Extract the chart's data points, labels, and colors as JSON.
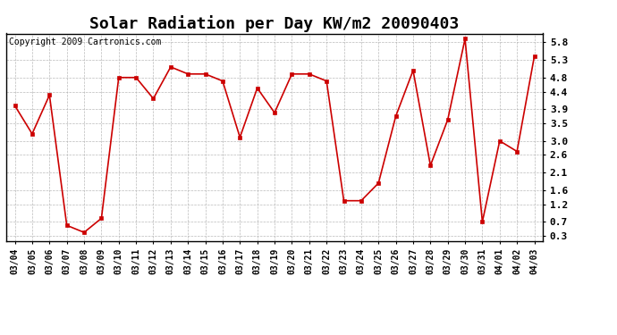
{
  "title": "Solar Radiation per Day KW/m2 20090403",
  "copyright": "Copyright 2009 Cartronics.com",
  "dates": [
    "03/04",
    "03/05",
    "03/06",
    "03/07",
    "03/08",
    "03/09",
    "03/10",
    "03/11",
    "03/12",
    "03/13",
    "03/14",
    "03/15",
    "03/16",
    "03/17",
    "03/18",
    "03/19",
    "03/20",
    "03/21",
    "03/22",
    "03/23",
    "03/24",
    "03/25",
    "03/26",
    "03/27",
    "03/28",
    "03/29",
    "03/30",
    "03/31",
    "04/01",
    "04/02",
    "04/03"
  ],
  "values": [
    4.0,
    3.2,
    4.3,
    0.6,
    0.4,
    0.8,
    4.8,
    4.8,
    4.2,
    5.1,
    4.9,
    4.9,
    4.7,
    3.1,
    4.5,
    3.8,
    4.9,
    4.9,
    4.7,
    1.3,
    1.3,
    1.8,
    3.7,
    5.0,
    2.3,
    3.6,
    5.9,
    0.7,
    3.0,
    2.7,
    5.4
  ],
  "line_color": "#cc0000",
  "marker": "s",
  "marker_size": 3,
  "background_color": "#ffffff",
  "grid_color": "#aaaaaa",
  "yticks": [
    0.3,
    0.7,
    1.2,
    1.6,
    2.1,
    2.6,
    3.0,
    3.5,
    3.9,
    4.4,
    4.8,
    5.3,
    5.8
  ],
  "ylim": [
    0.15,
    6.05
  ],
  "title_fontsize": 13,
  "tick_fontsize": 7,
  "copyright_fontsize": 7
}
